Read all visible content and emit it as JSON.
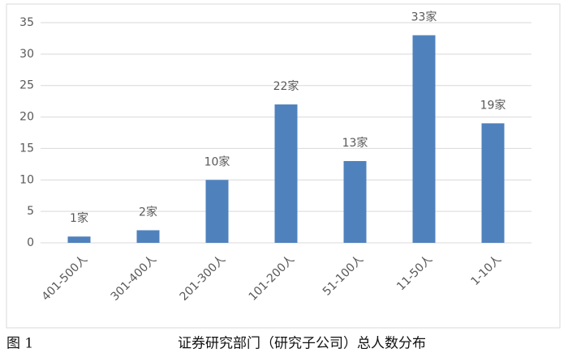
{
  "chart_data": {
    "type": "bar",
    "figure_label": "图 1",
    "title": "证券研究部门（研究子公司）总人数分布",
    "categories": [
      "401-500人",
      "301-400人",
      "201-300人",
      "101-200人",
      "51-100人",
      "11-50人",
      "1-10人"
    ],
    "values": [
      1,
      2,
      10,
      22,
      13,
      33,
      19
    ],
    "value_labels": [
      "1家",
      "2家",
      "10家",
      "22家",
      "13家",
      "33家",
      "19家"
    ],
    "color": "#4f81bd",
    "ylim": [
      0,
      35
    ],
    "yticks": [
      0,
      5,
      10,
      15,
      20,
      25,
      30,
      35
    ],
    "grid": true
  }
}
